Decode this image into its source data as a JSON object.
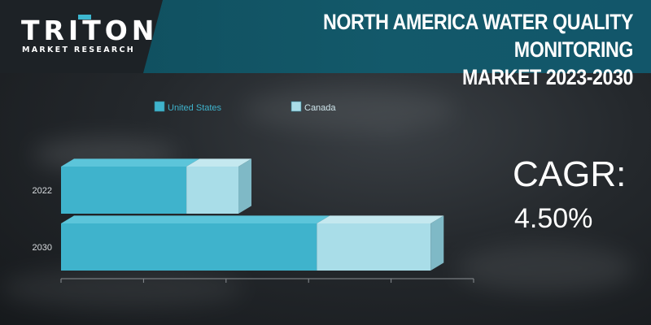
{
  "brand": {
    "name": "TRITON",
    "tagline": "MARKET RESEARCH"
  },
  "header": {
    "title_line1": "NORTH AMERICA WATER QUALITY MONITORING",
    "title_line2": "MARKET 2023-2030"
  },
  "cagr": {
    "label": "CAGR:",
    "value": "4.50%"
  },
  "colors": {
    "united_states": "#3fb3cc",
    "canada": "#a9dde8",
    "banner": "#13596a"
  },
  "chart_data": {
    "type": "bar",
    "orientation": "horizontal",
    "stacked": true,
    "categories": [
      "2022",
      "2030"
    ],
    "series": [
      {
        "name": "United States",
        "values": [
          1.52,
          3.1
        ]
      },
      {
        "name": "Canada",
        "values": [
          0.63,
          1.38
        ]
      }
    ],
    "xlim": [
      0,
      5
    ],
    "x_ticks_labeled": false,
    "title": "",
    "xlabel": "",
    "ylabel": "",
    "legend": "top",
    "grid": false
  }
}
